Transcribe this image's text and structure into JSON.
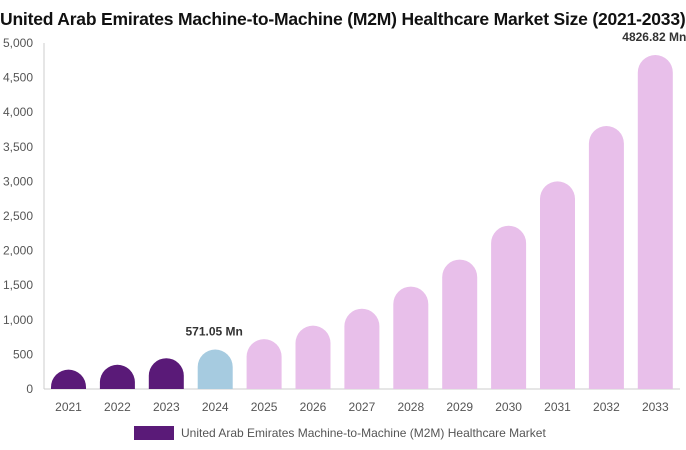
{
  "chart_data": {
    "type": "bar",
    "title": "United Arab Emirates Machine-to-Machine (M2M) Healthcare Market Size (2021-2033)",
    "xlabel": "",
    "ylabel": "",
    "categories": [
      "2021",
      "2022",
      "2023",
      "2024",
      "2025",
      "2026",
      "2027",
      "2028",
      "2029",
      "2030",
      "2031",
      "2032",
      "2033"
    ],
    "series": [
      {
        "name": "United Arab Emirates Machine-to-Machine (M2M) Healthcare Market",
        "values": [
          280,
          350,
          445,
          571.05,
          720,
          915,
          1160,
          1480,
          1870,
          2360,
          3000,
          3800,
          4826.82
        ]
      }
    ],
    "data_labels": [
      {
        "category": "2024",
        "text": "571.05 Mn"
      },
      {
        "category": "2033",
        "text": "4826.82 Mn"
      }
    ],
    "y_ticks": [
      0,
      500,
      1000,
      1500,
      2000,
      2500,
      3000,
      3500,
      4000,
      4500,
      5000
    ],
    "y_tick_labels": [
      "0",
      "500",
      "1,000",
      "1,500",
      "2,000",
      "2,500",
      "3,000",
      "3,500",
      "4,000",
      "4,500",
      "5,000"
    ],
    "ylim": [
      0,
      5000
    ],
    "grid": false,
    "legend_position": "bottom",
    "colors": {
      "historical": "#5a1a78",
      "base_year": "#a6cbe0",
      "forecast": "#e8bfea",
      "legend_swatch": "#5a1a78",
      "axis": "#cccccc"
    }
  }
}
